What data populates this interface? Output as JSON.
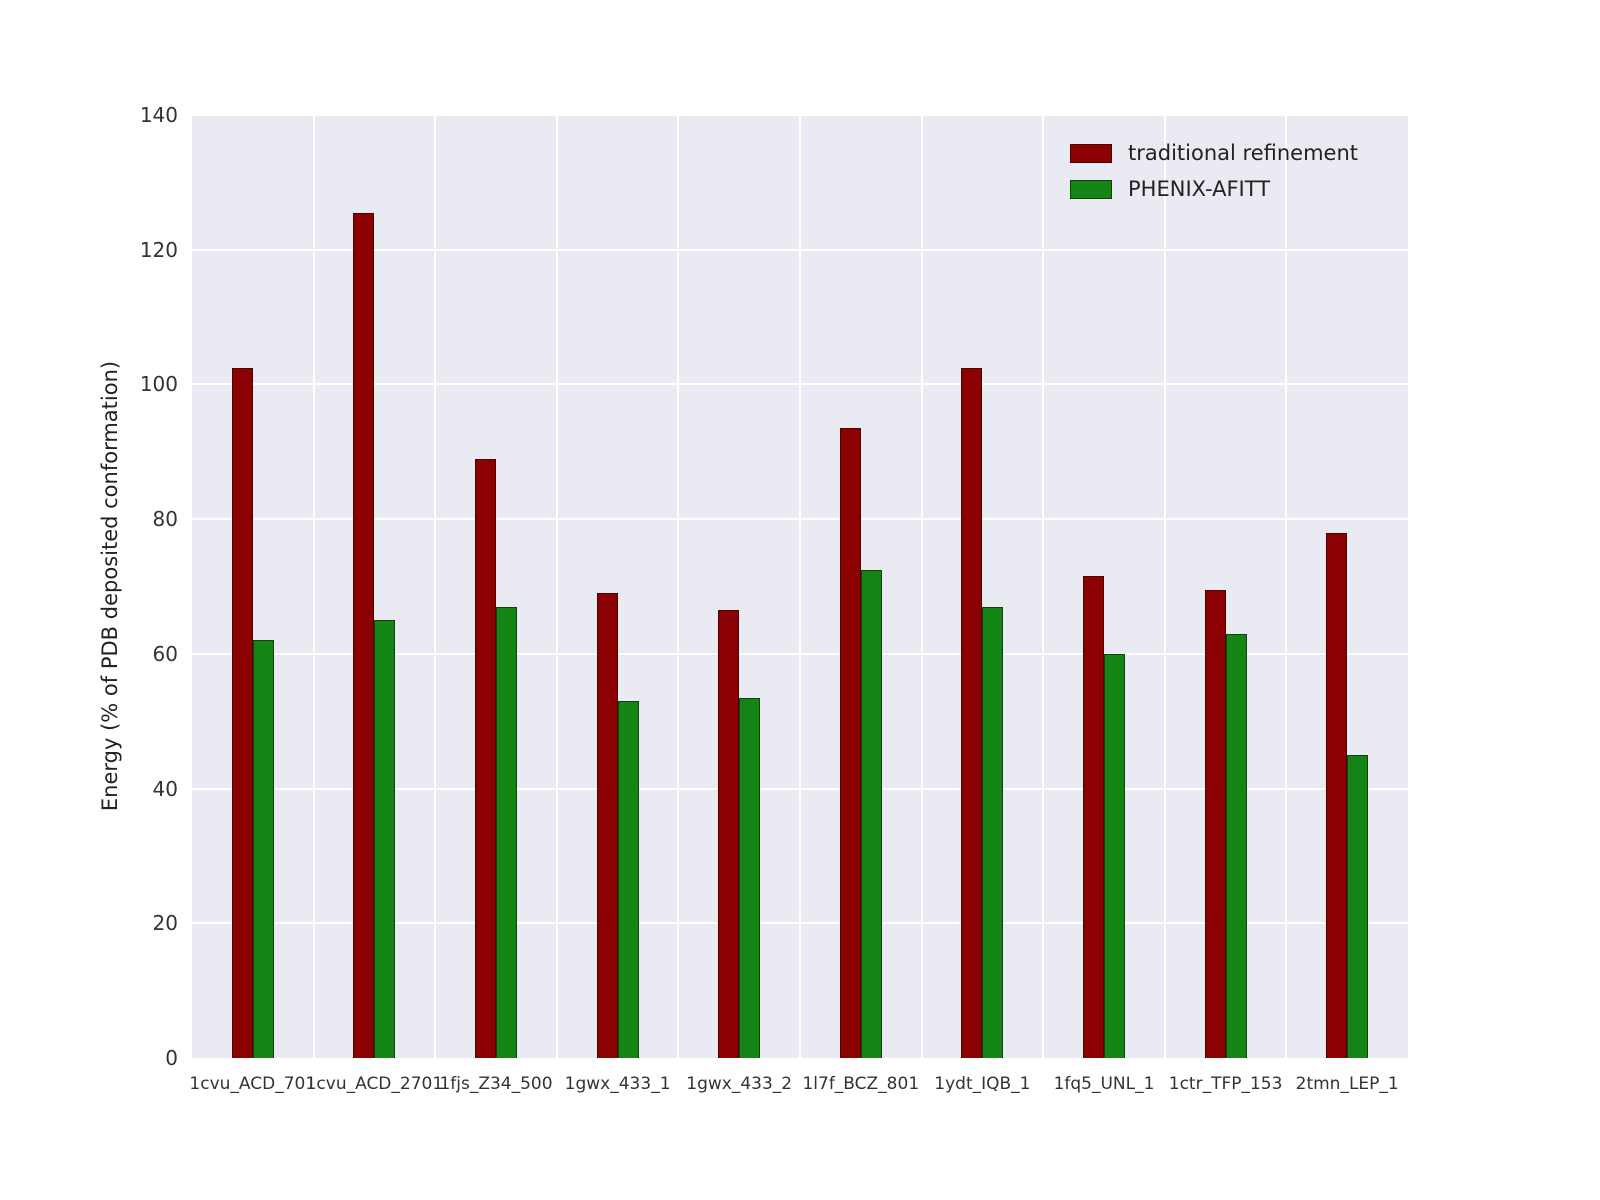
{
  "chart_data": {
    "type": "bar",
    "title": "",
    "xlabel": "",
    "ylabel": "Energy (% of PDB deposited conformation)",
    "ylim": [
      0,
      140
    ],
    "yticks": [
      0,
      20,
      40,
      60,
      80,
      100,
      120,
      140
    ],
    "grid": true,
    "legend_position": "upper right",
    "plot_background": "#eaeaf2",
    "gridline_color": "#ffffff",
    "categories": [
      "1cvu_ACD_701",
      "1cvu_ACD_2701",
      "1fjs_Z34_500",
      "1gwx_433_1",
      "1gwx_433_2",
      "1l7f_BCZ_801",
      "1ydt_IQB_1",
      "1fq5_UNL_1",
      "1ctr_TFP_153",
      "2tmn_LEP_1"
    ],
    "series": [
      {
        "name": "traditional refinement",
        "color": "#8b0000",
        "values": [
          102.5,
          125.5,
          89.0,
          69.0,
          66.5,
          93.5,
          102.5,
          71.5,
          69.5,
          78.0
        ]
      },
      {
        "name": "PHENIX-AFITT",
        "color": "#148414",
        "values": [
          62.0,
          65.0,
          67.0,
          53.0,
          53.5,
          72.5,
          67.0,
          60.0,
          63.0,
          45.0
        ]
      }
    ]
  }
}
